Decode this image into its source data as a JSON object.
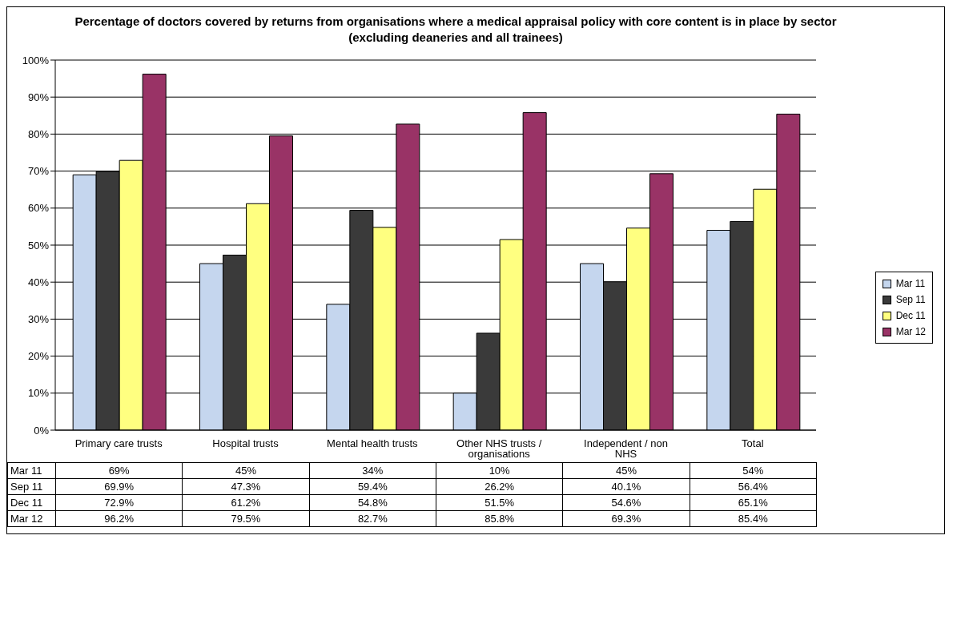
{
  "chart_data": {
    "type": "bar",
    "title": "Percentage of doctors covered by returns from organisations where a medical appraisal policy with core content is in place by sector (excluding deaneries and all trainees)",
    "categories": [
      "Primary care trusts",
      "Hospital trusts",
      "Mental health trusts",
      "Other NHS trusts / organisations",
      "Independent / non NHS",
      "Total"
    ],
    "series": [
      {
        "name": "Mar 11",
        "color": "#c5d6ee",
        "values": [
          69,
          45,
          34,
          10,
          45,
          54
        ],
        "value_labels": [
          "69%",
          "45%",
          "34%",
          "10%",
          "45%",
          "54%"
        ]
      },
      {
        "name": "Sep 11",
        "color": "#3a3a3a",
        "values": [
          69.9,
          47.3,
          59.4,
          26.2,
          40.1,
          56.4
        ],
        "value_labels": [
          "69.9%",
          "47.3%",
          "59.4%",
          "26.2%",
          "40.1%",
          "56.4%"
        ]
      },
      {
        "name": "Dec 11",
        "color": "#ffff80",
        "values": [
          72.9,
          61.2,
          54.8,
          51.5,
          54.6,
          65.1
        ],
        "value_labels": [
          "72.9%",
          "61.2%",
          "54.8%",
          "51.5%",
          "54.6%",
          "65.1%"
        ]
      },
      {
        "name": "Mar 12",
        "color": "#993366",
        "values": [
          96.2,
          79.5,
          82.7,
          85.8,
          69.3,
          85.4
        ],
        "value_labels": [
          "96.2%",
          "79.5%",
          "82.7%",
          "85.8%",
          "69.3%",
          "85.4%"
        ]
      }
    ],
    "ylim": [
      0,
      100
    ],
    "yticks": [
      {
        "value": 0,
        "label": "0%"
      },
      {
        "value": 10,
        "label": "10%"
      },
      {
        "value": 20,
        "label": "20%"
      },
      {
        "value": 30,
        "label": "30%"
      },
      {
        "value": 40,
        "label": "40%"
      },
      {
        "value": 50,
        "label": "50%"
      },
      {
        "value": 60,
        "label": "60%"
      },
      {
        "value": 70,
        "label": "70%"
      },
      {
        "value": 80,
        "label": "80%"
      },
      {
        "value": 90,
        "label": "90%"
      },
      {
        "value": 100,
        "label": "100%"
      }
    ],
    "grid": "y",
    "legend": "right"
  }
}
